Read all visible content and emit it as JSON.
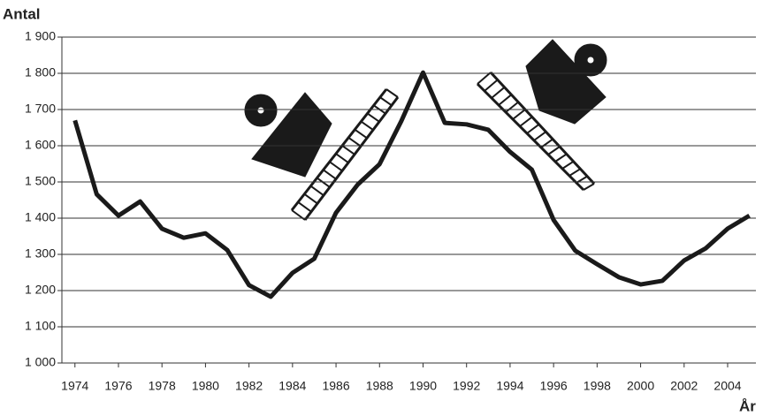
{
  "chart_data": {
    "type": "line",
    "y_label": "Antal",
    "x_label": "År",
    "x": [
      1974,
      1975,
      1976,
      1977,
      1978,
      1979,
      1980,
      1981,
      1982,
      1983,
      1984,
      1985,
      1986,
      1987,
      1988,
      1989,
      1990,
      1991,
      1992,
      1993,
      1994,
      1995,
      1996,
      1997,
      1998,
      1999,
      2000,
      2001,
      2002,
      2003,
      2004,
      2005
    ],
    "series": [
      {
        "color": "#1a1a1a",
        "values": [
          1670,
          1466,
          1407,
          1446,
          1371,
          1346,
          1358,
          1312,
          1215,
          1183,
          1249,
          1288,
          1415,
          1493,
          1549,
          1668,
          1802,
          1663,
          1659,
          1644,
          1583,
          1534,
          1395,
          1310,
          1273,
          1237,
          1217,
          1227,
          1283,
          1317,
          1371,
          1407
        ]
      }
    ],
    "xlim": [
      1973.4,
      2005.3
    ],
    "ylim": [
      1000,
      1900
    ],
    "xticks": [
      1974,
      1976,
      1978,
      1980,
      1982,
      1984,
      1986,
      1988,
      1990,
      1992,
      1994,
      1996,
      1998,
      2000,
      2002,
      2004
    ],
    "yticks": [
      {
        "value": 1000,
        "label": "1 000"
      },
      {
        "value": 1100,
        "label": "1 100"
      },
      {
        "value": 1200,
        "label": "1 200"
      },
      {
        "value": 1300,
        "label": "1 300"
      },
      {
        "value": 1400,
        "label": "1 400"
      },
      {
        "value": 1500,
        "label": "1 500"
      },
      {
        "value": 1600,
        "label": "1 600"
      },
      {
        "value": 1700,
        "label": "1 700"
      },
      {
        "value": 1800,
        "label": "1 800"
      },
      {
        "value": 1900,
        "label": "1 900"
      }
    ],
    "grid": true
  }
}
